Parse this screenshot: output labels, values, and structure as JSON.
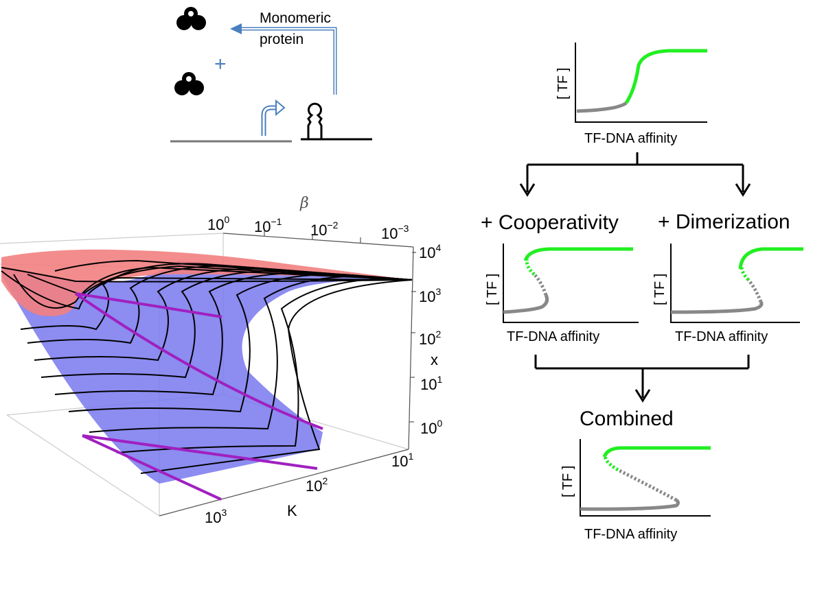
{
  "schematic": {
    "label_line1": "Monomeric",
    "label_line2": "protein",
    "plus_sign": "+"
  },
  "surface_plot": {
    "beta_axis": {
      "name": "β",
      "ticks": [
        {
          "base": "10",
          "exp": "0"
        },
        {
          "base": "10",
          "exp": "−1"
        },
        {
          "base": "10",
          "exp": "−2"
        },
        {
          "base": "10",
          "exp": "−3"
        }
      ]
    },
    "x_axis": {
      "name": "x",
      "ticks": [
        {
          "base": "10",
          "exp": "4"
        },
        {
          "base": "10",
          "exp": "3"
        },
        {
          "base": "10",
          "exp": "2"
        },
        {
          "base": "10",
          "exp": "1"
        },
        {
          "base": "10",
          "exp": "0"
        }
      ]
    },
    "k_axis": {
      "name": "K",
      "ticks": [
        {
          "base": "10",
          "exp": "1"
        },
        {
          "base": "10",
          "exp": "2"
        },
        {
          "base": "10",
          "exp": "3"
        }
      ]
    },
    "colors": {
      "stable_high": "#f28080",
      "stable_low": "#7777ee",
      "fold_curve": "#a020c0",
      "contour": "#000000"
    }
  },
  "flowchart": {
    "top": {
      "ylabel": "[ TF ]",
      "xlabel": "TF-DNA affinity"
    },
    "left": {
      "heading": "+ Cooperativity",
      "ylabel": "[ TF ]",
      "xlabel": "TF-DNA affinity"
    },
    "right": {
      "heading": "+ Dimerization",
      "ylabel": "[ TF ]",
      "xlabel": "TF-DNA affinity"
    },
    "bottom": {
      "heading": "Combined",
      "ylabel": "[ TF ]",
      "xlabel": "TF-DNA affinity"
    },
    "colors": {
      "high_branch": "#22ee22",
      "low_branch": "#888888",
      "arrow": "#000000"
    }
  }
}
